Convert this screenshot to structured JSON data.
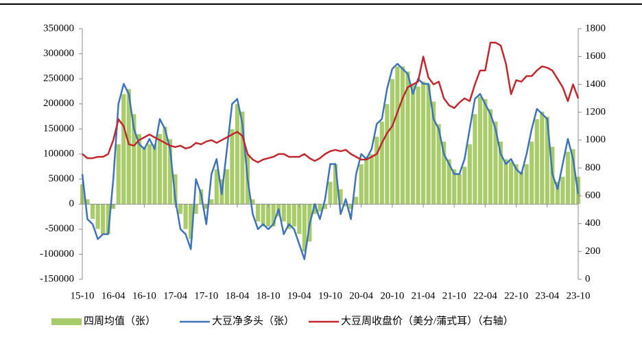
{
  "chart_data": {
    "type": "combo",
    "categories": [
      "15-10",
      null,
      null,
      null,
      null,
      null,
      "16-04",
      null,
      null,
      null,
      null,
      null,
      "16-10",
      null,
      null,
      null,
      null,
      null,
      "17-04",
      null,
      null,
      null,
      null,
      null,
      "17-10",
      null,
      null,
      null,
      null,
      null,
      "18-04",
      null,
      null,
      null,
      null,
      null,
      "18-10",
      null,
      null,
      null,
      null,
      null,
      "19-04",
      null,
      null,
      null,
      null,
      null,
      "19-10",
      null,
      null,
      null,
      null,
      null,
      "20-04",
      null,
      null,
      null,
      null,
      null,
      "20-10",
      null,
      null,
      null,
      null,
      null,
      "21-04",
      null,
      null,
      null,
      null,
      null,
      "21-10",
      null,
      null,
      null,
      null,
      null,
      "22-04",
      null,
      null,
      null,
      null,
      null,
      "22-10",
      null,
      null,
      null,
      null,
      null,
      "23-04",
      null,
      null,
      null,
      null,
      null,
      "23-10"
    ],
    "series": [
      {
        "name": "四周均值（张）",
        "type": "bar",
        "color": "#a8cc6a",
        "values": [
          40000,
          10000,
          -30000,
          -50000,
          -60000,
          -60000,
          -10000,
          120000,
          220000,
          230000,
          180000,
          140000,
          115000,
          120000,
          120000,
          140000,
          155000,
          130000,
          60000,
          -20000,
          -50000,
          -70000,
          -20000,
          30000,
          -10000,
          10000,
          70000,
          50000,
          70000,
          150000,
          200000,
          185000,
          100000,
          10000,
          -35000,
          -45000,
          -45000,
          -45000,
          -25000,
          -35000,
          -50000,
          -45000,
          -60000,
          -95000,
          -75000,
          -20000,
          -15000,
          -10000,
          45000,
          80000,
          30000,
          -5000,
          -10000,
          15000,
          80000,
          95000,
          100000,
          135000,
          165000,
          200000,
          250000,
          275000,
          275000,
          265000,
          240000,
          235000,
          245000,
          240000,
          205000,
          160000,
          125000,
          90000,
          70000,
          60000,
          75000,
          120000,
          180000,
          215000,
          210000,
          190000,
          165000,
          125000,
          90000,
          85000,
          80000,
          65000,
          80000,
          125000,
          170000,
          185000,
          175000,
          115000,
          45000,
          55000,
          105000,
          110000,
          55000
        ]
      },
      {
        "name": "大豆净多头（张）",
        "type": "line",
        "color": "#3d73b9",
        "values": [
          60000,
          -30000,
          -40000,
          -70000,
          -60000,
          -60000,
          50000,
          200000,
          240000,
          220000,
          150000,
          120000,
          110000,
          130000,
          110000,
          170000,
          150000,
          110000,
          10000,
          -50000,
          -60000,
          -90000,
          50000,
          20000,
          -40000,
          60000,
          90000,
          20000,
          110000,
          200000,
          210000,
          160000,
          50000,
          -20000,
          -50000,
          -40000,
          -50000,
          -40000,
          -10000,
          -60000,
          -40000,
          -50000,
          -80000,
          -110000,
          -40000,
          0,
          -30000,
          10000,
          80000,
          80000,
          -20000,
          10000,
          -30000,
          60000,
          100000,
          90000,
          110000,
          160000,
          170000,
          230000,
          270000,
          280000,
          270000,
          260000,
          220000,
          250000,
          240000,
          240000,
          170000,
          150000,
          100000,
          80000,
          60000,
          60000,
          90000,
          150000,
          210000,
          220000,
          200000,
          180000,
          150000,
          100000,
          80000,
          90000,
          70000,
          60000,
          100000,
          150000,
          190000,
          180000,
          170000,
          60000,
          30000,
          80000,
          130000,
          90000,
          20000
        ]
      },
      {
        "name": "大豆周收盘价（美分/蒲式耳）（右轴）",
        "type": "line",
        "axis": "y2",
        "color": "#c0272d",
        "values": [
          900,
          870,
          870,
          880,
          880,
          900,
          1000,
          1150,
          1100,
          970,
          960,
          1000,
          1020,
          1040,
          1020,
          1000,
          980,
          960,
          950,
          960,
          940,
          950,
          980,
          970,
          990,
          1000,
          980,
          1000,
          1020,
          1040,
          1060,
          1030,
          900,
          860,
          840,
          860,
          870,
          880,
          900,
          900,
          880,
          880,
          880,
          900,
          870,
          850,
          870,
          900,
          920,
          930,
          920,
          930,
          900,
          880,
          860,
          860,
          880,
          900,
          980,
          1050,
          1100,
          1200,
          1300,
          1380,
          1400,
          1420,
          1600,
          1450,
          1400,
          1420,
          1300,
          1250,
          1230,
          1270,
          1300,
          1280,
          1400,
          1500,
          1500,
          1700,
          1700,
          1680,
          1550,
          1330,
          1430,
          1420,
          1460,
          1460,
          1500,
          1530,
          1520,
          1500,
          1440,
          1380,
          1280,
          1400,
          1300
        ]
      }
    ],
    "ylim": [
      -150000,
      350000
    ],
    "yticks": [
      -150000,
      -100000,
      -50000,
      0,
      50000,
      100000,
      150000,
      200000,
      250000,
      300000,
      350000
    ],
    "y2lim": [
      0,
      1800
    ],
    "y2ticks": [
      0,
      200,
      400,
      600,
      800,
      1000,
      1200,
      1400,
      1600,
      1800
    ],
    "legend": "bottom"
  }
}
